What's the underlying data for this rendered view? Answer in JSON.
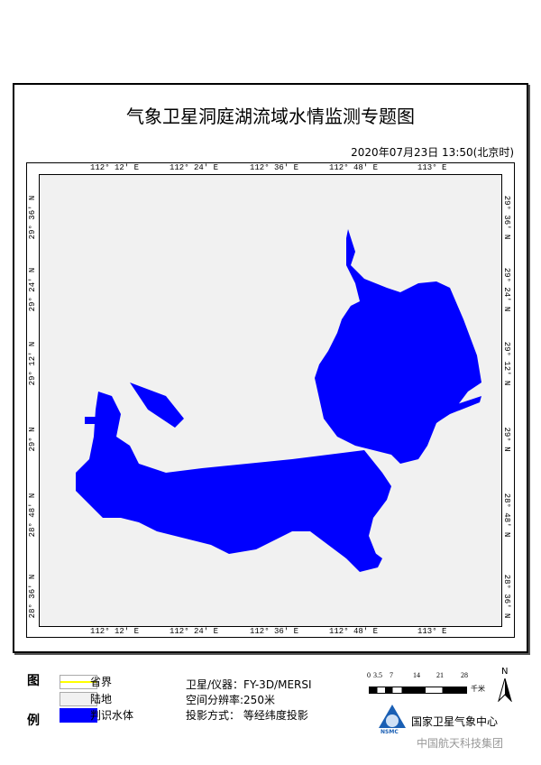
{
  "title": "气象卫星洞庭湖流域水情监测专题图",
  "datetime": "2020年07月23日  13:50(北京时)",
  "lon_labels": [
    "112° 12′ E",
    "112° 24′ E",
    "112° 36′ E",
    "112° 48′ E",
    "113° E"
  ],
  "lat_labels": [
    "29° 36′ N",
    "29° 24′ N",
    "29° 12′ N",
    "29° N",
    "28° 48′ N",
    "28° 36′ N"
  ],
  "legend": {
    "title_top": "图",
    "title_bottom": "例",
    "items": [
      {
        "label": "省界",
        "color": "#ffff00"
      },
      {
        "label": "陆地",
        "color": "#f1f1f1"
      },
      {
        "label": "判识水体",
        "color": "#0000ff"
      }
    ]
  },
  "info": {
    "satellite": "卫星/仪器：FY-3D/MERSI",
    "resolution": "空间分辨率:250米",
    "projection": "投影方式：  等经纬度投影"
  },
  "scale": {
    "ticks": [
      "0",
      "3.5",
      "7",
      "14",
      "21",
      "28"
    ],
    "unit": "千米"
  },
  "north": "N",
  "logo": {
    "text": "NSMC",
    "org": "国家卫星气象中心"
  },
  "watermark": "中国航天科技集团",
  "colors": {
    "water": "#0000ff",
    "land": "#f1f1f1"
  }
}
